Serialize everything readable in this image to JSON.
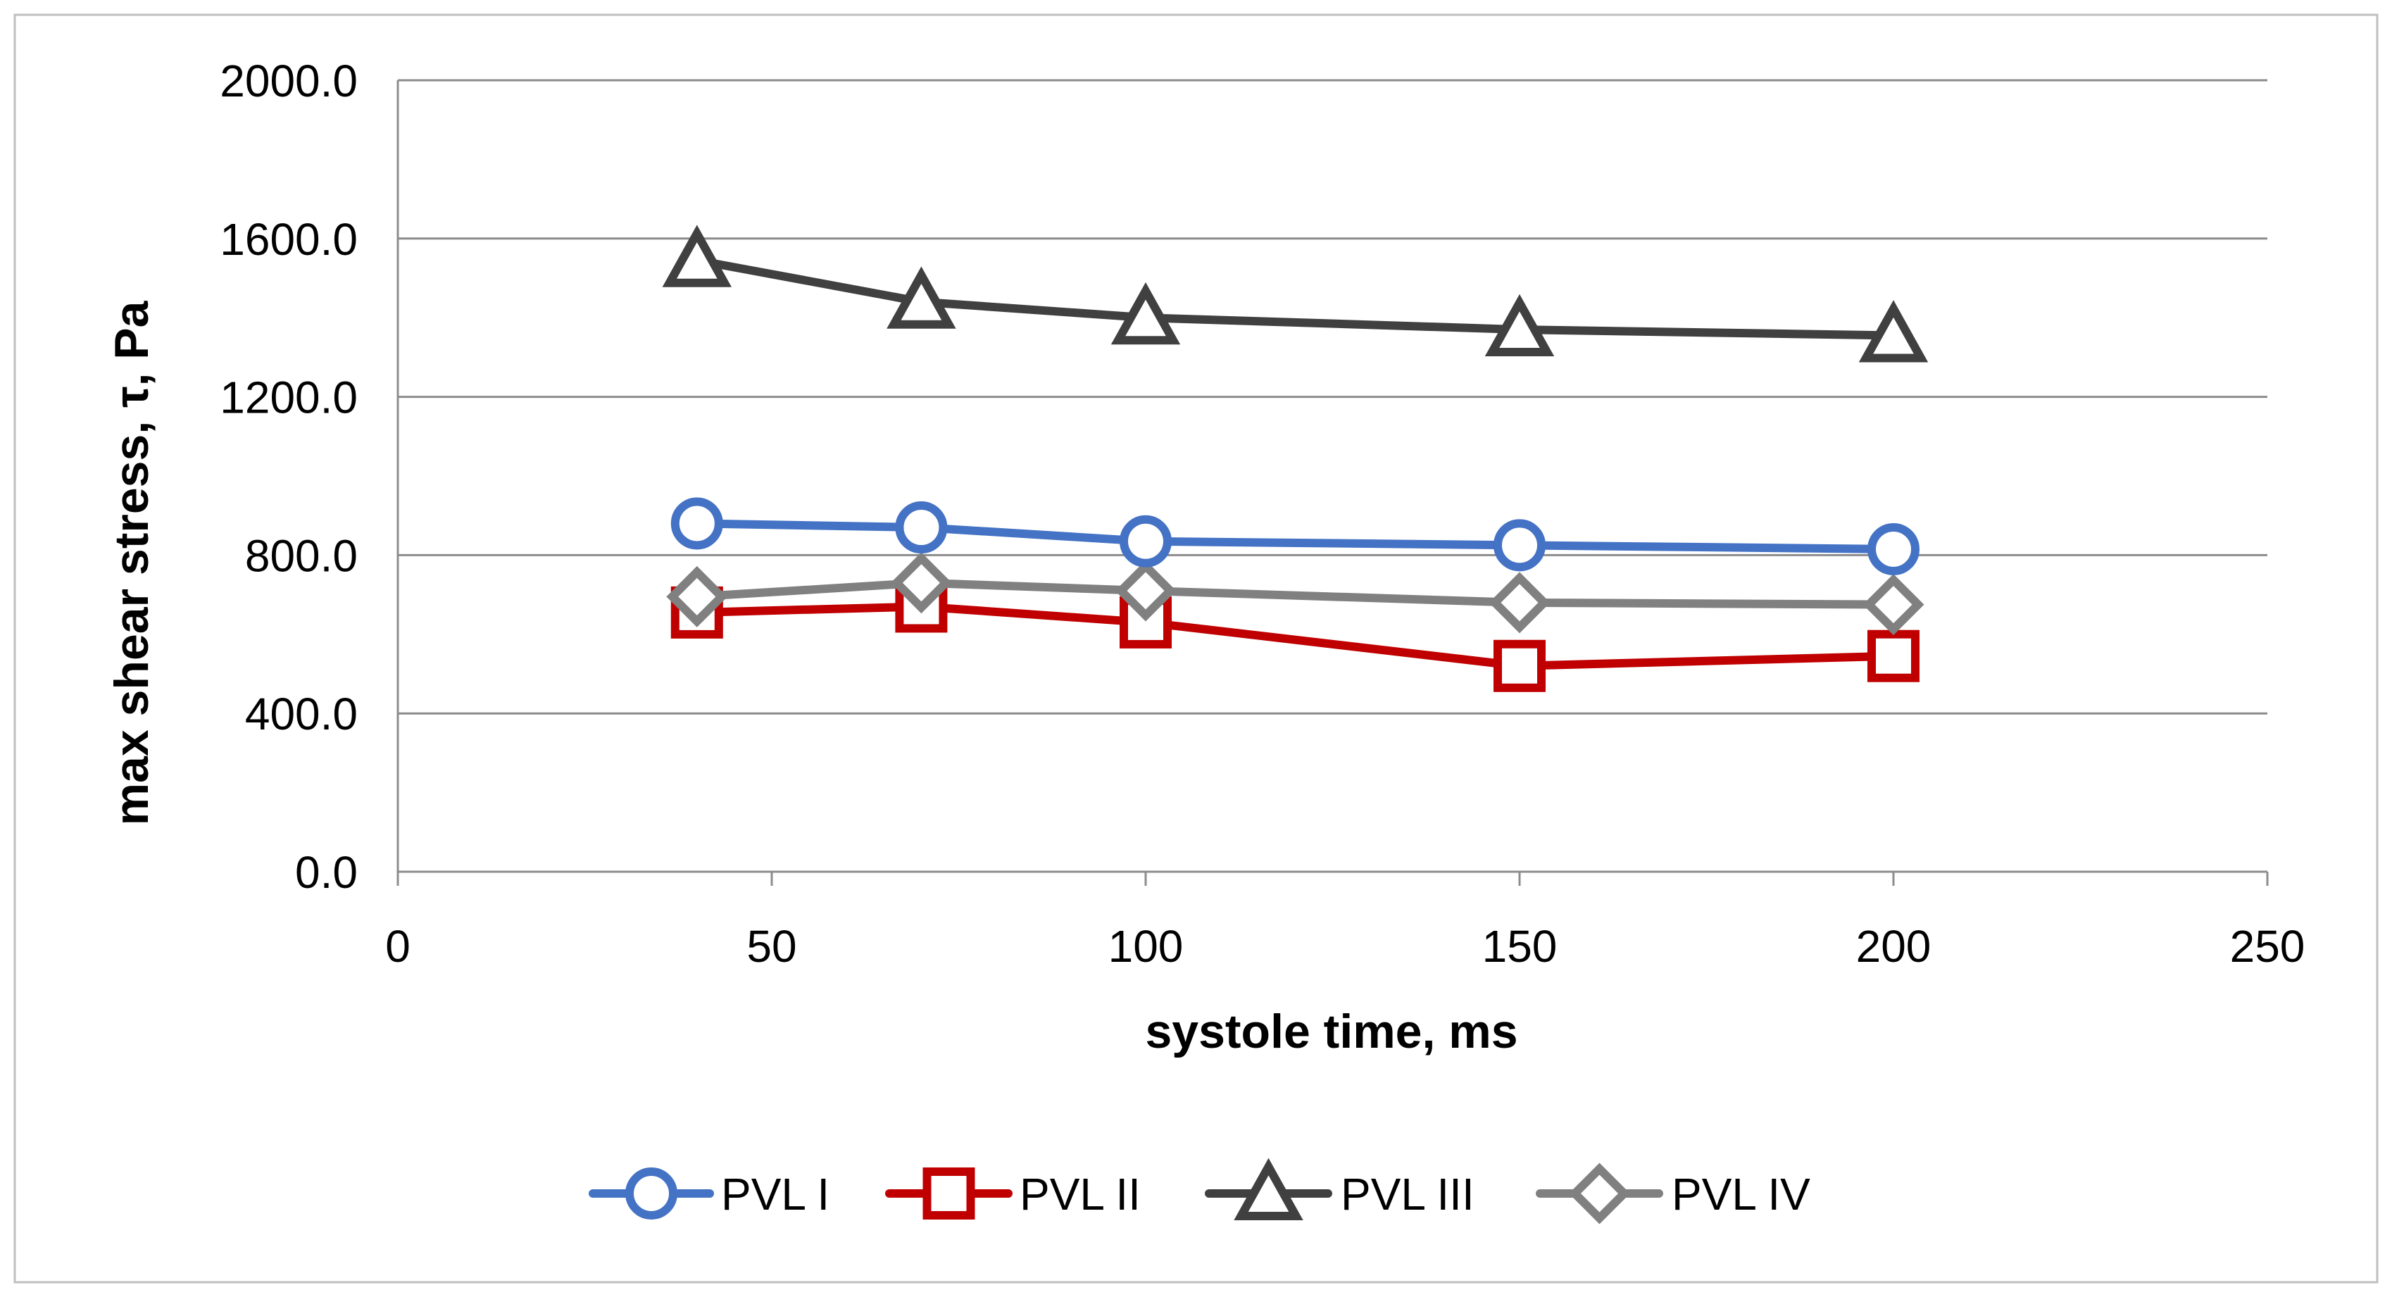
{
  "chart_data": {
    "type": "line",
    "title": "",
    "xlabel": "systole time, ms",
    "ylabel": "max shear stress, τ, Pa",
    "xlim": [
      0,
      250
    ],
    "ylim": [
      0,
      2000
    ],
    "x_ticks": [
      0,
      50,
      100,
      150,
      200,
      250
    ],
    "y_ticks": [
      0,
      400,
      800,
      1200,
      1600,
      2000
    ],
    "x_tick_labels": [
      "0",
      "50",
      "100",
      "150",
      "200",
      "250"
    ],
    "y_tick_labels": [
      "0.0",
      "400.0",
      "800.0",
      "1200.0",
      "1600.0",
      "2000.0"
    ],
    "grid": "horizontal",
    "legend_position": "bottom",
    "x": [
      40,
      70,
      100,
      150,
      200
    ],
    "series": [
      {
        "name": "PVL I",
        "marker": "circle",
        "color": "#4472C4",
        "values": [
          880,
          870,
          835,
          825,
          815
        ]
      },
      {
        "name": "PVL II",
        "marker": "square",
        "color": "#C00000",
        "values": [
          655,
          670,
          630,
          520,
          545
        ]
      },
      {
        "name": "PVL III",
        "marker": "triangle",
        "color": "#404040",
        "values": [
          1545,
          1440,
          1400,
          1370,
          1355
        ]
      },
      {
        "name": "PVL IV",
        "marker": "diamond",
        "color": "#808080",
        "values": [
          695,
          730,
          710,
          680,
          675
        ]
      }
    ]
  }
}
